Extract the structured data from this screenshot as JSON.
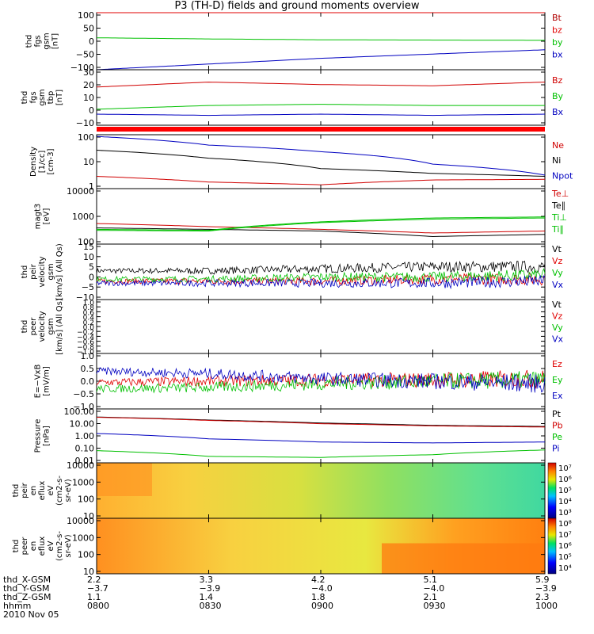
{
  "title": "P3 (TH-D) fields and ground moments overview",
  "date": "2010 Nov 05",
  "chart_data": {
    "type": "line",
    "x_time": {
      "start": "0800",
      "end": "1000",
      "ticks": [
        "0800",
        "0830",
        "0900",
        "0930",
        "1000"
      ]
    },
    "panels": [
      {
        "id": "fgs_gsm",
        "ylabel": [
          "thd",
          "fgs",
          "gsm",
          "[nT]"
        ],
        "yticks": [
          "100",
          "50",
          "0",
          "−50",
          "−100"
        ],
        "ylim": [
          -100,
          100
        ],
        "series": [
          {
            "name": "Bt",
            "color": "#b00000",
            "values": [
              100,
              100,
              100,
              100,
              100
            ]
          },
          {
            "name": "bz",
            "color": "#e00000",
            "values": [
              100,
              100,
              100,
              100,
              100
            ]
          },
          {
            "name": "by",
            "color": "#00c000",
            "values": [
              12,
              8,
              5,
              4,
              3
            ]
          },
          {
            "name": "bx",
            "color": "#0000c0",
            "values": [
              -100,
              -80,
              -60,
              -45,
              -30
            ]
          }
        ]
      },
      {
        "id": "fgs_gsm_tbp",
        "ylabel": [
          "thd",
          "fgs",
          "gsm",
          "tbp",
          "[nT]"
        ],
        "yticks": [
          "30",
          "20",
          "10",
          "0",
          "−10"
        ],
        "ylim": [
          -15,
          30
        ],
        "series": [
          {
            "name": "Bz",
            "color": "#d00000",
            "values": [
              16,
              20,
              18,
              17,
              20
            ]
          },
          {
            "name": "By",
            "color": "#00c000",
            "values": [
              -2,
              1,
              2,
              1,
              1
            ]
          },
          {
            "name": "Bx",
            "color": "#0000c0",
            "values": [
              -6,
              -7,
              -6,
              -7,
              -6
            ]
          }
        ]
      },
      {
        "id": "density",
        "ylabel": [
          "Density",
          "[1/cc]",
          "[cm-3]"
        ],
        "yticks": [
          "100",
          "10",
          "1"
        ],
        "log": true,
        "ylim": [
          0.6,
          180
        ],
        "series": [
          {
            "name": "Ne",
            "color": "#d00000",
            "values": [
              2.2,
              1.2,
              0.9,
              1.5,
              1.6
            ]
          },
          {
            "name": "Ni",
            "color": "#000000",
            "values": [
              35,
              15,
              5,
              3,
              2.2
            ]
          },
          {
            "name": "Npot",
            "color": "#0000c0",
            "values": [
              150,
              60,
              30,
              8,
              2.5
            ]
          }
        ]
      },
      {
        "id": "magt3",
        "ylabel": [
          "magt3",
          "[eV]"
        ],
        "yticks": [
          "10000",
          "1000",
          "100"
        ],
        "log": true,
        "ylim": [
          90,
          15000
        ],
        "series": [
          {
            "name": "Te⊥",
            "color": "#d00000",
            "values": [
              600,
              450,
              350,
              250,
              300
            ]
          },
          {
            "name": "Te∥",
            "color": "#000000",
            "values": [
              400,
              350,
              300,
              180,
              220
            ]
          },
          {
            "name": "Ti⊥",
            "color": "#00c000",
            "values": [
              350,
              320,
              700,
              1000,
              1100
            ]
          },
          {
            "name": "Ti∥",
            "color": "#00c000",
            "values": [
              320,
              300,
              650,
              900,
              1000
            ]
          }
        ]
      },
      {
        "id": "peir_velocity",
        "ylabel": [
          "thd",
          "peir",
          "velocity",
          "gsm",
          "[km/s] (All Qs)"
        ],
        "yticks": [
          "15",
          "10",
          "5",
          "0",
          "−5",
          "−10"
        ],
        "ylim": [
          -11,
          16
        ],
        "series": [
          {
            "name": "Vt",
            "color": "#000000",
            "values": [
              3,
              3,
              4,
              5,
              5
            ]
          },
          {
            "name": "Vz",
            "color": "#e00000",
            "values": [
              -2,
              -2,
              -2,
              -1,
              -1
            ]
          },
          {
            "name": "Vy",
            "color": "#00c000",
            "values": [
              -1,
              -1,
              0,
              0,
              1
            ]
          },
          {
            "name": "Vx",
            "color": "#0000c0",
            "values": [
              -3,
              -3,
              -3,
              -3,
              -2
            ]
          }
        ]
      },
      {
        "id": "peer_velocity",
        "ylabel": [
          "thd",
          "peer",
          "velocity",
          "gsm",
          "[km/s] (All Qs)"
        ],
        "yticks": [
          "1.0",
          "0.8",
          "0.6",
          "0.4",
          "0.2",
          "0.0",
          "−0.2",
          "−0.4",
          "−0.6",
          "−0.8",
          "−1.0"
        ],
        "ylim": [
          -1,
          1
        ],
        "series": [
          {
            "name": "Vt",
            "color": "#000000",
            "values": []
          },
          {
            "name": "Vz",
            "color": "#e00000",
            "values": []
          },
          {
            "name": "Vy",
            "color": "#00c000",
            "values": []
          },
          {
            "name": "Vx",
            "color": "#0000c0",
            "values": []
          }
        ]
      },
      {
        "id": "efield",
        "ylabel": [
          "E=−VxB",
          "[mV/m]"
        ],
        "yticks": [
          "1.0",
          "0.5",
          "0.0",
          "−0.5",
          "−1.0"
        ],
        "ylim": [
          -1.1,
          1.1
        ],
        "series": [
          {
            "name": "Ez",
            "color": "#e00000",
            "values": [
              -0.05,
              0,
              0.05,
              0.05,
              0.1
            ]
          },
          {
            "name": "Ey",
            "color": "#00c000",
            "values": [
              -0.3,
              -0.25,
              -0.1,
              0,
              0.05
            ]
          },
          {
            "name": "Ex",
            "color": "#0000c0",
            "values": [
              0.4,
              0.3,
              0.1,
              0,
              -0.1
            ]
          }
        ]
      },
      {
        "id": "pressure",
        "ylabel": [
          "Pressure",
          "[nPa]"
        ],
        "yticks": [
          "100.00",
          "10.00",
          "1.00",
          "0.10",
          "0.01"
        ],
        "log": true,
        "ylim": [
          0.01,
          100
        ],
        "series": [
          {
            "name": "Pt",
            "color": "#000000",
            "values": [
              25,
              15,
              9,
              6,
              5
            ]
          },
          {
            "name": "Pb",
            "color": "#d00000",
            "values": [
              24,
              14,
              8,
              5.5,
              4.5
            ]
          },
          {
            "name": "Pe",
            "color": "#00c000",
            "values": [
              0.08,
              0.03,
              0.025,
              0.04,
              0.09
            ]
          },
          {
            "name": "Pi",
            "color": "#0000c0",
            "values": [
              1.5,
              0.6,
              0.35,
              0.3,
              0.35
            ]
          }
        ]
      },
      {
        "id": "peir_spec",
        "ylabel": [
          "thd",
          "peir",
          "en",
          "eflux",
          "eV",
          "(cm2-s-",
          "sr-eV)"
        ],
        "yticks": [
          "10000",
          "1000",
          "100",
          "10"
        ],
        "spectrogram": true,
        "colorbar": {
          "labels": [
            "10⁷",
            "10⁶",
            "10⁵",
            "10⁴",
            "10³"
          ]
        }
      },
      {
        "id": "peer_spec",
        "ylabel": [
          "thd",
          "peer",
          "en",
          "eflux",
          "eV",
          "(cm2-s-",
          "sr-eV)"
        ],
        "yticks": [
          "10000",
          "1000",
          "100",
          "10"
        ],
        "spectrogram": true,
        "colorbar": {
          "labels": [
            "10⁸",
            "10⁷",
            "10⁶",
            "10⁵",
            "10⁴"
          ]
        }
      }
    ],
    "ephemeris": [
      {
        "label": "thd_X-GSM",
        "values": [
          "2.2",
          "3.3",
          "4.2",
          "5.1",
          "5.9"
        ]
      },
      {
        "label": "thd_Y-GSM",
        "values": [
          "−3.7",
          "−3.9",
          "−4.0",
          "−4.0",
          "−3.9"
        ]
      },
      {
        "label": "thd_Z-GSM",
        "values": [
          "1.1",
          "1.4",
          "1.8",
          "2.1",
          "2.3"
        ]
      },
      {
        "label": "hhmm",
        "values": [
          "0800",
          "0830",
          "0900",
          "0930",
          "1000"
        ]
      }
    ]
  }
}
